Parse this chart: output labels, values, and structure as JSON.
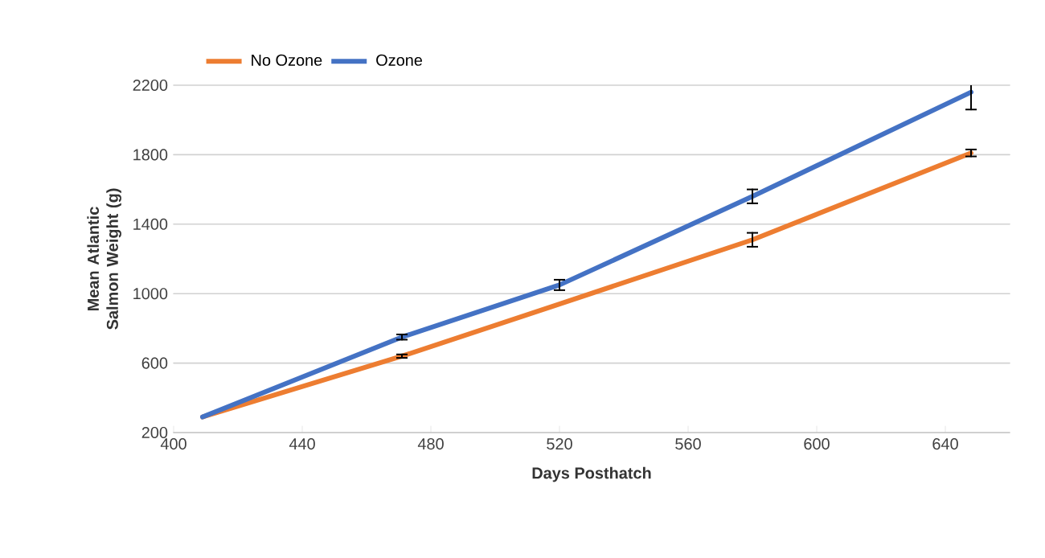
{
  "chart_data": {
    "type": "line",
    "xlabel": "Days Posthatch",
    "ylabel": "Mean Atlantic Salmon Weight (g)",
    "x": [
      409,
      471,
      520,
      580,
      648
    ],
    "series": [
      {
        "name": "No Ozone",
        "color": "#ed7d31",
        "values": [
          290,
          640,
          940,
          1310,
          1810
        ],
        "errors": [
          null,
          10,
          null,
          40,
          20
        ]
      },
      {
        "name": "Ozone",
        "color": "#4472c4",
        "values": [
          290,
          750,
          1050,
          1560,
          2160
        ],
        "errors": [
          null,
          15,
          30,
          40,
          100
        ]
      }
    ],
    "xlim": [
      400,
      660
    ],
    "xticks": [
      400,
      440,
      480,
      520,
      560,
      600,
      640
    ],
    "ylim": [
      200,
      2200
    ],
    "yticks": [
      200,
      600,
      1000,
      1400,
      1800,
      2200
    ],
    "grid": "y",
    "legend": "top left",
    "marker": "none",
    "line_style": "solid"
  }
}
